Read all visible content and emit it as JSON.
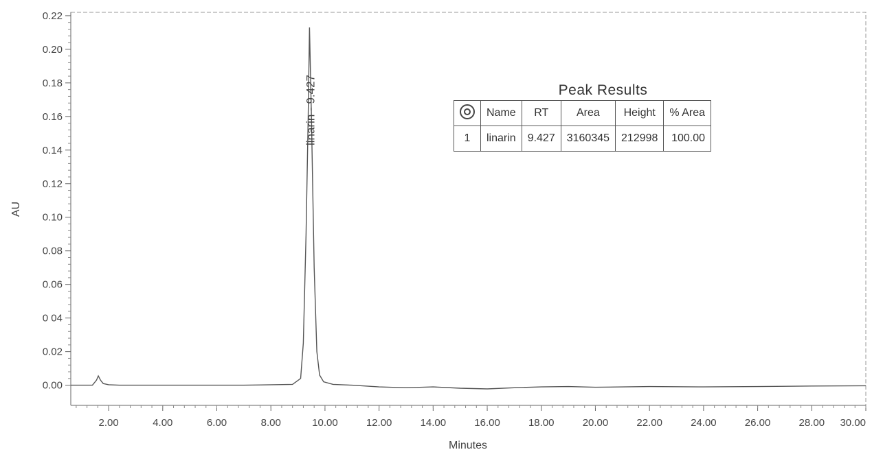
{
  "chart_data": {
    "type": "line",
    "title": "",
    "xlabel": "Minutes",
    "ylabel": "AU",
    "xlim": [
      0.6,
      30.0
    ],
    "ylim": [
      -0.012,
      0.222
    ],
    "x_ticks": [
      "2.00",
      "4.00",
      "6.00",
      "8.00",
      "10.00",
      "12.00",
      "14.00",
      "16.00",
      "18.00",
      "20.00",
      "22.00",
      "24.00",
      "26.00",
      "28.00",
      "30.00"
    ],
    "x_tick_values": [
      2,
      4,
      6,
      8,
      10,
      12,
      14,
      16,
      18,
      20,
      22,
      24,
      26,
      28,
      30
    ],
    "y_ticks": [
      "0.00",
      "0.02",
      "0 04",
      "0.06",
      "0.08",
      "0.10",
      "0.12",
      "0.14",
      "0.16",
      "0.18",
      "0.20",
      "0.22"
    ],
    "y_tick_values": [
      0.0,
      0.02,
      0.04,
      0.06,
      0.08,
      0.1,
      0.12,
      0.14,
      0.16,
      0.18,
      0.2,
      0.22
    ],
    "series": [
      {
        "x": [
          0.6,
          1.4,
          1.55,
          1.62,
          1.7,
          1.8,
          2.0,
          2.4,
          3.0,
          5.0,
          7.0,
          8.8,
          9.1,
          9.2,
          9.3,
          9.38,
          9.427,
          9.5,
          9.6,
          9.7,
          9.8,
          9.95,
          10.3,
          11.0,
          12.0,
          13.0,
          14.0,
          15.0,
          16.0,
          17.0,
          18.0,
          19.0,
          20.0,
          22.0,
          24.0,
          26.0,
          28.0,
          30.0
        ],
        "y": [
          0.0,
          0.0,
          0.003,
          0.0055,
          0.003,
          0.001,
          0.0003,
          0.0,
          0.0,
          0.0,
          0.0,
          0.0005,
          0.004,
          0.025,
          0.09,
          0.16,
          0.213,
          0.16,
          0.07,
          0.02,
          0.006,
          0.002,
          0.0005,
          0.0,
          -0.001,
          -0.0015,
          -0.001,
          -0.0018,
          -0.0022,
          -0.0015,
          -0.001,
          -0.0008,
          -0.0012,
          -0.0008,
          -0.001,
          -0.0008,
          -0.0005,
          -0.0003
        ]
      }
    ],
    "annotations": [
      {
        "text": "linarin - 9.427",
        "x": 9.427
      }
    ],
    "grid": false
  },
  "peak_table": {
    "title": "Peak Results",
    "headers": [
      "",
      "Name",
      "RT",
      "Area",
      "Height",
      "% Area"
    ],
    "rows": [
      {
        "index": "1",
        "name": "linarin",
        "rt": "9.427",
        "area": "3160345",
        "height": "212998",
        "pct_area": "100.00"
      }
    ]
  }
}
